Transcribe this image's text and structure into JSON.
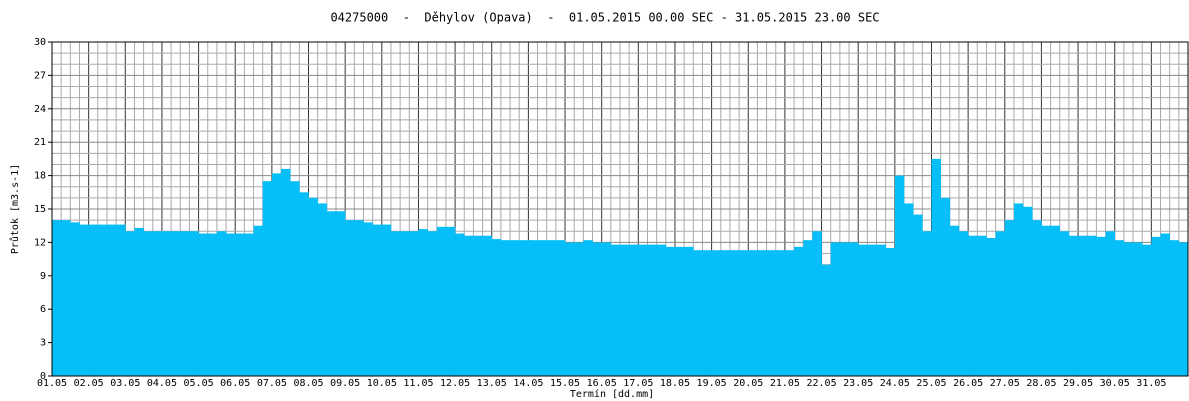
{
  "chart_data": {
    "type": "area",
    "title": "04275000  -  Děhylov (Opava)  -  01.05.2015 00.00 SEC - 31.05.2015 23.00 SEC",
    "y_label": "Průtok [m3.s-1]",
    "x_label": "Termín [dd.mm]",
    "color": "#06bff8",
    "ylim": [
      0,
      30
    ],
    "yticks": [
      0,
      3,
      6,
      9,
      12,
      15,
      18,
      21,
      24,
      27,
      30
    ],
    "yminorticks": [
      1,
      2,
      4,
      5,
      7,
      8,
      10,
      11,
      13,
      14,
      16,
      17,
      19,
      20,
      22,
      23,
      25,
      26,
      28,
      29
    ],
    "grid": true,
    "categories": [
      "01.05",
      null,
      null,
      null,
      "02.05",
      null,
      null,
      null,
      "03.05",
      null,
      null,
      null,
      "04.05",
      null,
      null,
      null,
      "05.05",
      null,
      null,
      null,
      "06.05",
      null,
      null,
      null,
      "07.05",
      null,
      null,
      null,
      "08.05",
      null,
      null,
      null,
      "09.05",
      null,
      null,
      null,
      "10.05",
      null,
      null,
      null,
      "11.05",
      null,
      null,
      null,
      "12.05",
      null,
      null,
      null,
      "13.05",
      null,
      null,
      null,
      "14.05",
      null,
      null,
      null,
      "15.05",
      null,
      null,
      null,
      "16.05",
      null,
      null,
      null,
      "17.05",
      null,
      null,
      null,
      "18.05",
      null,
      null,
      null,
      "19.05",
      null,
      null,
      null,
      "20.05",
      null,
      null,
      null,
      "21.05",
      null,
      null,
      null,
      "22.05",
      null,
      null,
      null,
      "23.05",
      null,
      null,
      null,
      "24.05",
      null,
      null,
      null,
      "25.05",
      null,
      null,
      null,
      "26.05",
      null,
      null,
      null,
      "27.05",
      null,
      null,
      null,
      "28.05",
      null,
      null,
      null,
      "29.05",
      null,
      null,
      null,
      "30.05",
      null,
      null,
      null,
      "31.05",
      null,
      null,
      null
    ],
    "values": [
      14,
      14,
      13.8,
      13.6,
      13.6,
      13.6,
      13.6,
      13.6,
      13,
      13.3,
      13,
      13,
      13,
      13,
      13,
      13,
      12.8,
      12.8,
      13,
      12.8,
      12.8,
      12.8,
      13.5,
      17.5,
      18.2,
      18.6,
      17.5,
      16.5,
      16,
      15.5,
      14.8,
      14.8,
      14,
      14,
      13.8,
      13.6,
      13.6,
      13,
      13,
      13,
      13.2,
      13,
      13.4,
      13.4,
      12.8,
      12.6,
      12.6,
      12.6,
      12.3,
      12.2,
      12.2,
      12.2,
      12.2,
      12.2,
      12.2,
      12.2,
      12,
      12,
      12.2,
      12,
      12,
      11.8,
      11.8,
      11.8,
      11.8,
      11.8,
      11.8,
      11.6,
      11.6,
      11.6,
      11.3,
      11.3,
      11.3,
      11.3,
      11.3,
      11.3,
      11.3,
      11.3,
      11.3,
      11.3,
      11.3,
      11.6,
      12.2,
      13,
      10,
      12,
      12,
      12,
      11.8,
      11.8,
      11.8,
      11.5,
      18,
      15.5,
      14.5,
      13,
      19.5,
      16,
      13.5,
      13,
      12.6,
      12.6,
      12.4,
      13,
      14,
      15.5,
      15.2,
      14,
      13.5,
      13.5,
      13,
      12.6,
      12.6,
      12.6,
      12.5,
      13,
      12.2,
      12,
      12,
      11.8,
      12.5,
      12.8,
      12.2,
      12
    ]
  }
}
